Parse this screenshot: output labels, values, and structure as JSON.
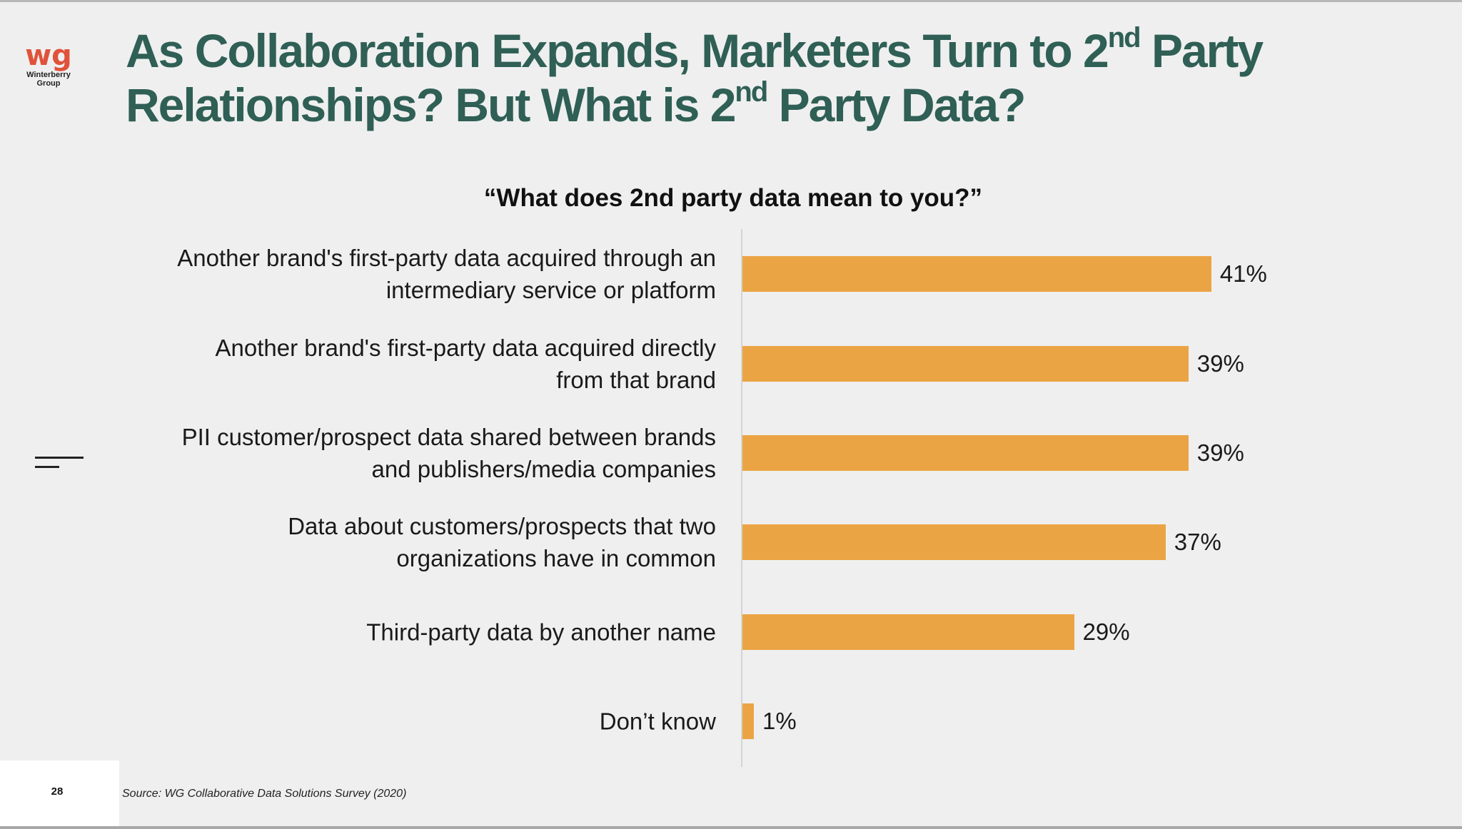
{
  "logo": {
    "mark": "wg",
    "name_line1": "Winterberry",
    "name_line2": "Group"
  },
  "title": {
    "line1_pre": "As Collaboration Expands, Marketers Turn to 2",
    "line1_sup": "nd",
    "line1_post": " Party",
    "line2_pre": "Relationships? But What is 2",
    "line2_sup": "nd",
    "line2_post": " Party Data?"
  },
  "footer": {
    "page_number": "28",
    "source": "Source: WG Collaborative Data Solutions Survey (2020)"
  },
  "colors": {
    "bar": "#eba444",
    "title": "#2f5f55",
    "logo": "#e0523a"
  },
  "chart_data": {
    "type": "bar",
    "orientation": "horizontal",
    "title": "“What does 2nd party data mean to you?”",
    "categories": [
      "Another brand's first-party data acquired through an intermediary service or platform",
      "Another brand's first-party data acquired directly from that brand",
      "PII customer/prospect data shared between brands and publishers/media companies",
      "Data about customers/prospects that two organizations have in common",
      "Third-party data by another name",
      "Don’t know"
    ],
    "values": [
      41,
      39,
      39,
      37,
      29,
      1
    ],
    "value_labels": [
      "41%",
      "39%",
      "39%",
      "37%",
      "29%",
      "1%"
    ],
    "unit": "%",
    "xlim": [
      0,
      41
    ]
  }
}
